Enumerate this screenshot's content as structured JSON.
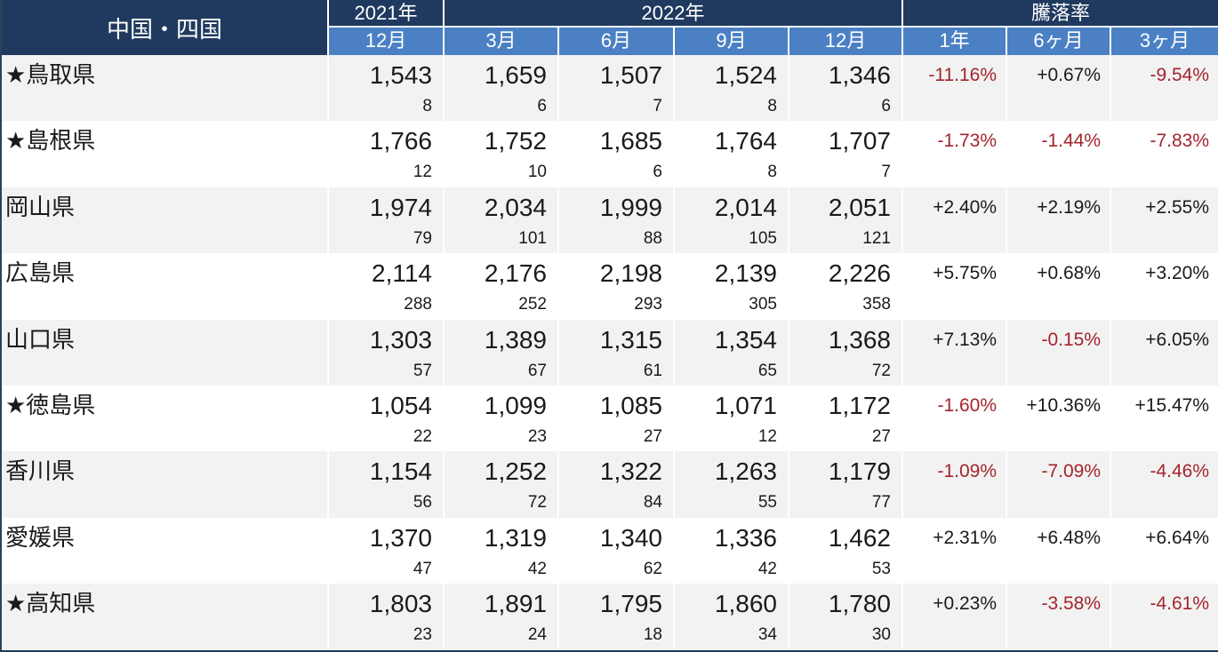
{
  "chart_data": {
    "type": "table",
    "title": "中国・四国",
    "groups": [
      "2021年",
      "2022年",
      "騰落率"
    ],
    "sub_headers": [
      "12月",
      "3月",
      "6月",
      "9月",
      "12月",
      "1年",
      "6ヶ月",
      "3ヶ月"
    ],
    "rows": [
      {
        "name": "★鳥取県",
        "values": [
          "1,543",
          "1,659",
          "1,507",
          "1,524",
          "1,346"
        ],
        "counts": [
          "8",
          "6",
          "7",
          "8",
          "6"
        ],
        "changes": [
          {
            "text": "-11.16%",
            "cls": "neg"
          },
          {
            "text": "+0.67%",
            "cls": "pos"
          },
          {
            "text": "-9.54%",
            "cls": "neg"
          }
        ]
      },
      {
        "name": "★島根県",
        "values": [
          "1,766",
          "1,752",
          "1,685",
          "1,764",
          "1,707"
        ],
        "counts": [
          "12",
          "10",
          "6",
          "8",
          "7"
        ],
        "changes": [
          {
            "text": "-1.73%",
            "cls": "neg"
          },
          {
            "text": "-1.44%",
            "cls": "neg"
          },
          {
            "text": "-7.83%",
            "cls": "neg"
          }
        ]
      },
      {
        "name": "岡山県",
        "values": [
          "1,974",
          "2,034",
          "1,999",
          "2,014",
          "2,051"
        ],
        "counts": [
          "79",
          "101",
          "88",
          "105",
          "121"
        ],
        "changes": [
          {
            "text": "+2.40%",
            "cls": "pos"
          },
          {
            "text": "+2.19%",
            "cls": "pos"
          },
          {
            "text": "+2.55%",
            "cls": "pos"
          }
        ]
      },
      {
        "name": "広島県",
        "values": [
          "2,114",
          "2,176",
          "2,198",
          "2,139",
          "2,226"
        ],
        "counts": [
          "288",
          "252",
          "293",
          "305",
          "358"
        ],
        "changes": [
          {
            "text": "+5.75%",
            "cls": "pos"
          },
          {
            "text": "+0.68%",
            "cls": "pos"
          },
          {
            "text": "+3.20%",
            "cls": "pos"
          }
        ]
      },
      {
        "name": "山口県",
        "values": [
          "1,303",
          "1,389",
          "1,315",
          "1,354",
          "1,368"
        ],
        "counts": [
          "57",
          "67",
          "61",
          "65",
          "72"
        ],
        "changes": [
          {
            "text": "+7.13%",
            "cls": "pos"
          },
          {
            "text": "-0.15%",
            "cls": "neg"
          },
          {
            "text": "+6.05%",
            "cls": "pos"
          }
        ]
      },
      {
        "name": "★徳島県",
        "values": [
          "1,054",
          "1,099",
          "1,085",
          "1,071",
          "1,172"
        ],
        "counts": [
          "22",
          "23",
          "27",
          "12",
          "27"
        ],
        "changes": [
          {
            "text": "-1.60%",
            "cls": "neg"
          },
          {
            "text": "+10.36%",
            "cls": "pos"
          },
          {
            "text": "+15.47%",
            "cls": "pos"
          }
        ]
      },
      {
        "name": "香川県",
        "values": [
          "1,154",
          "1,252",
          "1,322",
          "1,263",
          "1,179"
        ],
        "counts": [
          "56",
          "72",
          "84",
          "55",
          "77"
        ],
        "changes": [
          {
            "text": "-1.09%",
            "cls": "neg"
          },
          {
            "text": "-7.09%",
            "cls": "neg"
          },
          {
            "text": "-4.46%",
            "cls": "neg"
          }
        ]
      },
      {
        "name": "愛媛県",
        "values": [
          "1,370",
          "1,319",
          "1,340",
          "1,336",
          "1,462"
        ],
        "counts": [
          "47",
          "42",
          "62",
          "42",
          "53"
        ],
        "changes": [
          {
            "text": "+2.31%",
            "cls": "pos"
          },
          {
            "text": "+6.48%",
            "cls": "pos"
          },
          {
            "text": "+6.64%",
            "cls": "pos"
          }
        ]
      },
      {
        "name": "★高知県",
        "values": [
          "1,803",
          "1,891",
          "1,795",
          "1,860",
          "1,780"
        ],
        "counts": [
          "23",
          "24",
          "18",
          "34",
          "30"
        ],
        "changes": [
          {
            "text": "+0.23%",
            "cls": "pos"
          },
          {
            "text": "-3.58%",
            "cls": "neg"
          },
          {
            "text": "-4.61%",
            "cls": "neg"
          }
        ]
      }
    ]
  },
  "colors": {
    "navy": "#1f3a5e",
    "blue": "#4b80c4",
    "rowalt": "#f2f2f2",
    "neg": "#a3242c",
    "ink": "#1a1a1a",
    "edge": "#2b4257"
  }
}
